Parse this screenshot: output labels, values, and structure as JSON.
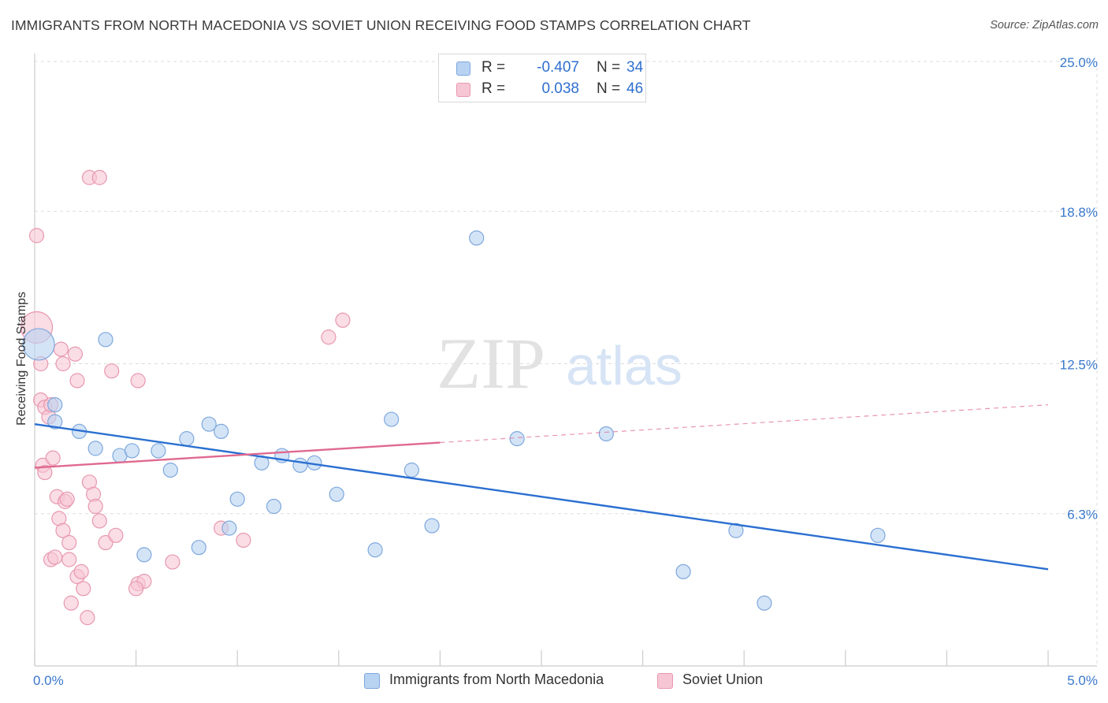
{
  "title": "IMMIGRANTS FROM NORTH MACEDONIA VS SOVIET UNION RECEIVING FOOD STAMPS CORRELATION CHART",
  "source": "Source: ZipAtlas.com",
  "watermark": {
    "zip": "ZIP",
    "atlas": "atlas"
  },
  "legend": {
    "rows": [
      {
        "r_label": "R =",
        "r_value": "-0.407",
        "n_label": "N =",
        "n_value": "34"
      },
      {
        "r_label": "R =",
        "r_value": "0.038",
        "n_label": "N =",
        "n_value": "46"
      }
    ]
  },
  "colors": {
    "blue_fill": "#b8d2f2",
    "blue_stroke": "#7ea8dd",
    "blue_line": "#2a6fd1",
    "pink_fill": "#f7c6d4",
    "pink_stroke": "#e898b0",
    "pink_line": "#e0698f",
    "grid": "#dddddd",
    "axis": "#cccccc",
    "tick_label": "#3a78cc"
  },
  "chart_data": {
    "type": "scatter",
    "title": "IMMIGRANTS FROM NORTH MACEDONIA VS SOVIET UNION RECEIVING FOOD STAMPS CORRELATION CHART",
    "xlabel": "",
    "ylabel": "Receiving Food Stamps",
    "xlim": [
      0,
      5.0
    ],
    "ylim": [
      0,
      25.0
    ],
    "x_tick_labels": [
      "0.0%",
      "5.0%"
    ],
    "y_ticks": [
      6.3,
      12.5,
      18.8,
      25.0
    ],
    "y_tick_labels": [
      "6.3%",
      "12.5%",
      "18.8%",
      "25.0%"
    ],
    "series": [
      {
        "name": "Immigrants from North Macedonia",
        "color": "blue",
        "r": -0.407,
        "n": 34,
        "trend": {
          "x": [
            0.0,
            5.0
          ],
          "y": [
            10.0,
            4.0
          ],
          "solid_until": 5.0
        },
        "points": [
          {
            "x": 0.02,
            "y": 13.3,
            "big": true
          },
          {
            "x": 0.1,
            "y": 10.8
          },
          {
            "x": 0.1,
            "y": 10.1
          },
          {
            "x": 0.22,
            "y": 9.7
          },
          {
            "x": 0.35,
            "y": 13.5
          },
          {
            "x": 0.3,
            "y": 9.0
          },
          {
            "x": 0.42,
            "y": 8.7
          },
          {
            "x": 0.48,
            "y": 8.9
          },
          {
            "x": 0.61,
            "y": 8.9
          },
          {
            "x": 0.67,
            "y": 8.1
          },
          {
            "x": 0.75,
            "y": 9.4
          },
          {
            "x": 0.86,
            "y": 10.0
          },
          {
            "x": 0.92,
            "y": 9.7
          },
          {
            "x": 1.12,
            "y": 8.4
          },
          {
            "x": 1.22,
            "y": 8.7
          },
          {
            "x": 1.31,
            "y": 8.3
          },
          {
            "x": 1.38,
            "y": 8.4
          },
          {
            "x": 1.0,
            "y": 6.9
          },
          {
            "x": 1.18,
            "y": 6.6
          },
          {
            "x": 0.96,
            "y": 5.7
          },
          {
            "x": 0.54,
            "y": 4.6
          },
          {
            "x": 0.81,
            "y": 4.9
          },
          {
            "x": 1.49,
            "y": 7.1
          },
          {
            "x": 1.76,
            "y": 10.2
          },
          {
            "x": 1.86,
            "y": 8.1
          },
          {
            "x": 1.96,
            "y": 5.8
          },
          {
            "x": 1.68,
            "y": 4.8
          },
          {
            "x": 2.18,
            "y": 17.7
          },
          {
            "x": 2.38,
            "y": 9.4
          },
          {
            "x": 2.82,
            "y": 9.6
          },
          {
            "x": 3.46,
            "y": 5.6
          },
          {
            "x": 4.16,
            "y": 5.4
          },
          {
            "x": 3.2,
            "y": 3.9
          },
          {
            "x": 3.6,
            "y": 2.6
          }
        ]
      },
      {
        "name": "Soviet Union",
        "color": "pink",
        "r": 0.038,
        "n": 46,
        "trend": {
          "x": [
            0.0,
            5.0
          ],
          "y": [
            8.2,
            10.8
          ],
          "solid_until": 2.0
        },
        "points": [
          {
            "x": 0.01,
            "y": 17.8
          },
          {
            "x": 0.01,
            "y": 14.0,
            "big": true
          },
          {
            "x": 0.03,
            "y": 12.5
          },
          {
            "x": 0.03,
            "y": 11.0
          },
          {
            "x": 0.05,
            "y": 10.7
          },
          {
            "x": 0.07,
            "y": 10.3
          },
          {
            "x": 0.08,
            "y": 10.8
          },
          {
            "x": 0.04,
            "y": 8.3
          },
          {
            "x": 0.05,
            "y": 8.0
          },
          {
            "x": 0.09,
            "y": 8.6
          },
          {
            "x": 0.11,
            "y": 7.0
          },
          {
            "x": 0.12,
            "y": 6.1
          },
          {
            "x": 0.14,
            "y": 5.6
          },
          {
            "x": 0.14,
            "y": 12.5
          },
          {
            "x": 0.13,
            "y": 13.1
          },
          {
            "x": 0.15,
            "y": 6.8
          },
          {
            "x": 0.16,
            "y": 6.9
          },
          {
            "x": 0.17,
            "y": 5.1
          },
          {
            "x": 0.17,
            "y": 4.4
          },
          {
            "x": 0.18,
            "y": 2.6
          },
          {
            "x": 0.08,
            "y": 4.4
          },
          {
            "x": 0.1,
            "y": 4.5
          },
          {
            "x": 0.2,
            "y": 12.9
          },
          {
            "x": 0.21,
            "y": 11.8
          },
          {
            "x": 0.21,
            "y": 3.7
          },
          {
            "x": 0.23,
            "y": 3.9
          },
          {
            "x": 0.24,
            "y": 3.2
          },
          {
            "x": 0.26,
            "y": 2.0
          },
          {
            "x": 0.27,
            "y": 7.6
          },
          {
            "x": 0.29,
            "y": 7.1
          },
          {
            "x": 0.3,
            "y": 6.6
          },
          {
            "x": 0.32,
            "y": 6.0
          },
          {
            "x": 0.35,
            "y": 5.1
          },
          {
            "x": 0.27,
            "y": 20.2
          },
          {
            "x": 0.32,
            "y": 20.2
          },
          {
            "x": 0.38,
            "y": 12.2
          },
          {
            "x": 0.4,
            "y": 5.4
          },
          {
            "x": 0.51,
            "y": 11.8
          },
          {
            "x": 0.51,
            "y": 3.4
          },
          {
            "x": 0.54,
            "y": 3.5
          },
          {
            "x": 0.68,
            "y": 4.3
          },
          {
            "x": 0.92,
            "y": 5.7
          },
          {
            "x": 1.03,
            "y": 5.2
          },
          {
            "x": 1.45,
            "y": 13.6
          },
          {
            "x": 1.52,
            "y": 14.3
          },
          {
            "x": 0.5,
            "y": 3.2
          }
        ]
      }
    ]
  },
  "bottom_legend": [
    {
      "label": "Immigrants from North Macedonia"
    },
    {
      "label": "Soviet Union"
    }
  ]
}
